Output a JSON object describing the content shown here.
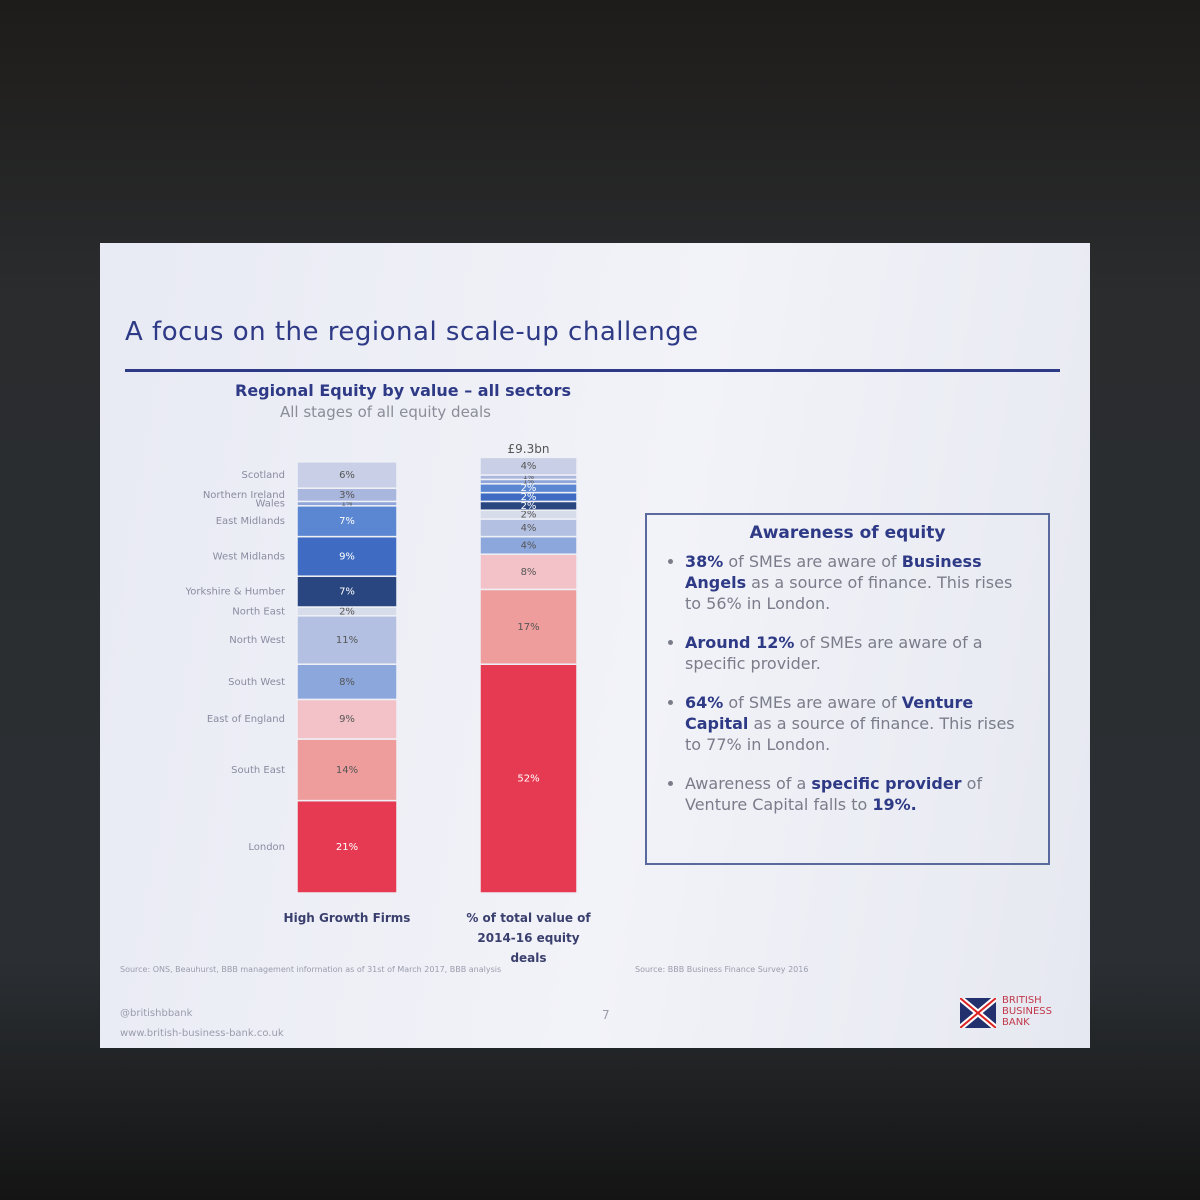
{
  "slide": {
    "title": "A focus on the regional scale-up challenge",
    "source_left": "Source: ONS, Beauhurst, BBB management information as of 31st of March 2017, BBB analysis",
    "source_right": "Source: BBB Business Finance Survey 2016",
    "handle": "@britishbbank",
    "website": "www.british-business-bank.co.uk",
    "page_number": "7",
    "logo": [
      "BRITISH",
      "BUSINESS",
      "BANK"
    ]
  },
  "chart_data": {
    "type": "stacked-bar",
    "title": "Regional Equity by value – all sectors",
    "subtitle": "All stages of all equity deals",
    "total_label": "£9.3bn",
    "categories": [
      "High Growth Firms",
      "% of total value of 2014-16 equity deals"
    ],
    "series": [
      {
        "name": "Scotland",
        "color": "#c9cfe6",
        "values": [
          6,
          4
        ],
        "value_labels": [
          "6%",
          "4%"
        ]
      },
      {
        "name": "Northern Ireland",
        "color": "#a9b6de",
        "values": [
          3,
          1
        ],
        "value_labels": [
          "3%",
          "1%"
        ]
      },
      {
        "name": "Wales",
        "color": "#8fa5da",
        "values": [
          1,
          1
        ],
        "value_labels": [
          "1%",
          "1%"
        ]
      },
      {
        "name": "East Midlands",
        "color": "#5a86d2",
        "values": [
          7,
          2
        ],
        "value_labels": [
          "7%",
          "2%"
        ]
      },
      {
        "name": "West Midlands",
        "color": "#3f6cc2",
        "values": [
          9,
          2
        ],
        "value_labels": [
          "9%",
          "2%"
        ]
      },
      {
        "name": "Yorkshire & Humber",
        "color": "#2a4680",
        "values": [
          7,
          2
        ],
        "value_labels": [
          "7%",
          "2%"
        ]
      },
      {
        "name": "North East",
        "color": "#d7dcea",
        "values": [
          2,
          2
        ],
        "value_labels": [
          "2%",
          "2%"
        ]
      },
      {
        "name": "North West",
        "color": "#b3c0e2",
        "values": [
          11,
          4
        ],
        "value_labels": [
          "11%",
          "4%"
        ]
      },
      {
        "name": "South West",
        "color": "#8ca7dc",
        "values": [
          8,
          4
        ],
        "value_labels": [
          "8%",
          "4%"
        ]
      },
      {
        "name": "East of England",
        "color": "#f2c2c8",
        "values": [
          9,
          8
        ],
        "value_labels": [
          "9%",
          "8%"
        ]
      },
      {
        "name": "South East",
        "color": "#ee9c9c",
        "values": [
          14,
          17
        ],
        "value_labels": [
          "14%",
          "17%"
        ]
      },
      {
        "name": "London",
        "color": "#e63a52",
        "values": [
          21,
          52
        ],
        "value_labels": [
          "21%",
          "52%"
        ]
      }
    ]
  },
  "awareness": {
    "heading": "Awareness of equity",
    "bullets": [
      {
        "segments": [
          {
            "text": "38%",
            "bold": true
          },
          {
            "text": " of SMEs are aware of ",
            "bold": false
          },
          {
            "text": "Business Angels",
            "bold": true
          },
          {
            "text": " as a source of finance. This rises to 56% in London.",
            "bold": false
          }
        ]
      },
      {
        "segments": [
          {
            "text": "Around 12%",
            "bold": true
          },
          {
            "text": " of SMEs are aware of a specific provider.",
            "bold": false
          }
        ]
      },
      {
        "segments": [
          {
            "text": "64%",
            "bold": true
          },
          {
            "text": " of SMEs are aware of ",
            "bold": false
          },
          {
            "text": "Venture Capital",
            "bold": true
          },
          {
            "text": " as a source of finance. This rises to 77% in London.",
            "bold": false
          }
        ]
      },
      {
        "segments": [
          {
            "text": "Awareness of a ",
            "bold": false
          },
          {
            "text": "specific provider",
            "bold": true
          },
          {
            "text": " of Venture Capital falls to ",
            "bold": false
          },
          {
            "text": "19%.",
            "bold": true
          }
        ]
      }
    ]
  }
}
